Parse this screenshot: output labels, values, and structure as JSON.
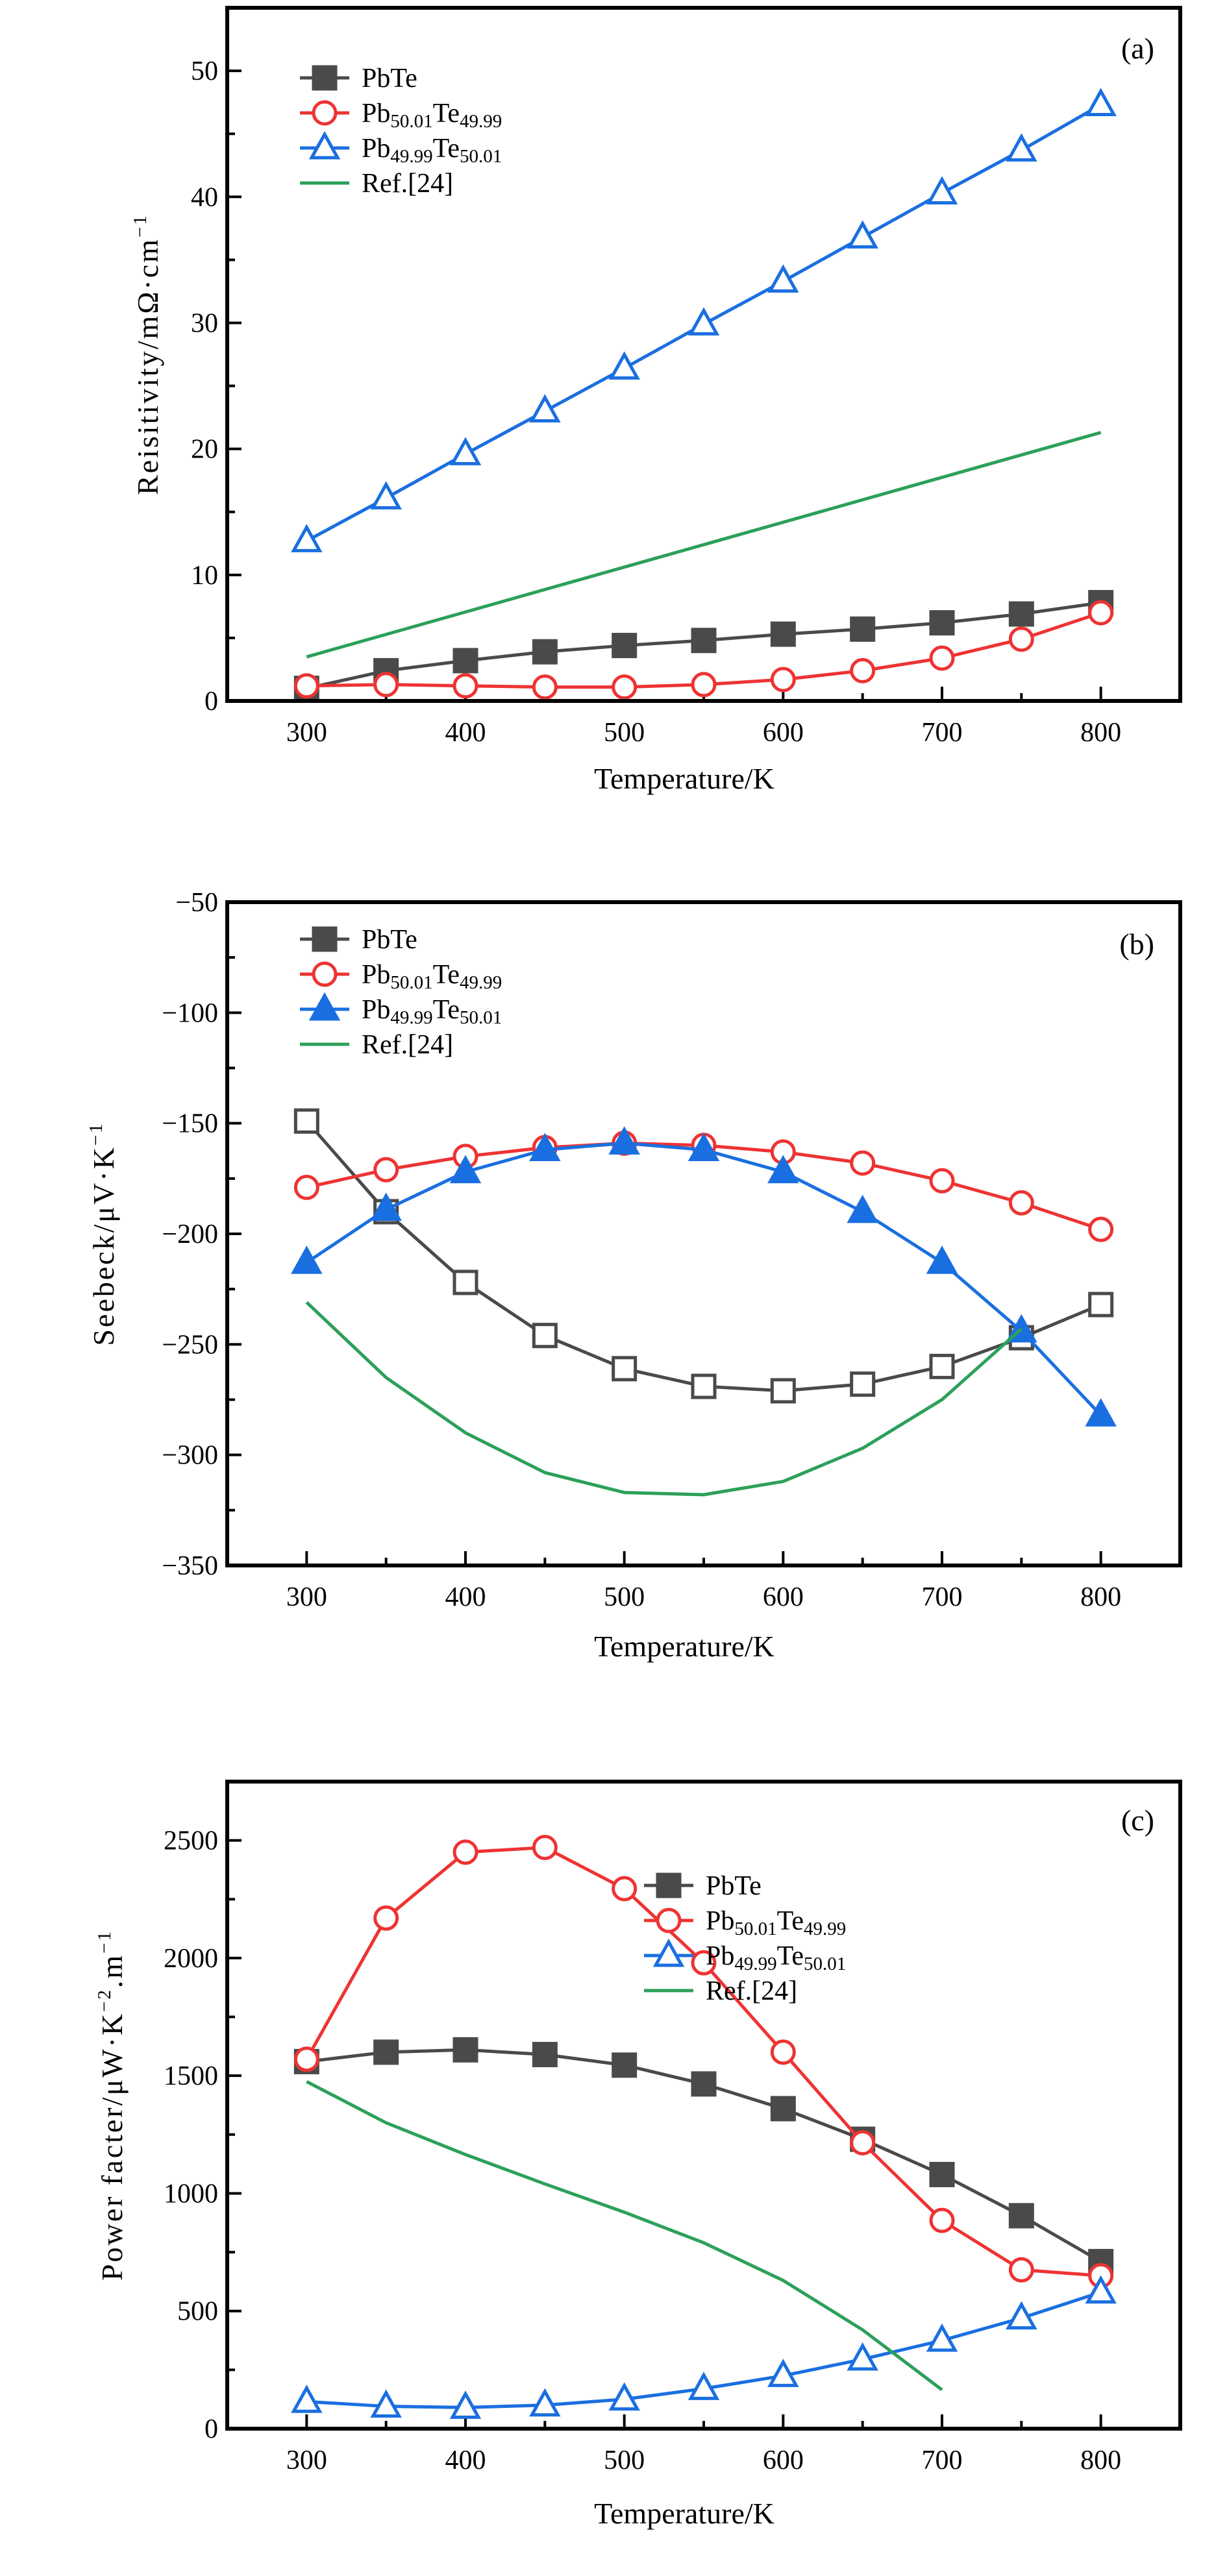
{
  "colors": {
    "PbTe": "#4a4a4a",
    "Pb50.01Te49.99": "#ee3333",
    "Pb49.99Te50.01": "#1a6fe0",
    "Ref": "#2ca05a"
  },
  "chart_data": [
    {
      "type": "line",
      "panel_label": "(a)",
      "xlabel": "Temperature/K",
      "ylabel": [
        "Reisitivity/mΩ·cm",
        "−1"
      ],
      "xlim": [
        250,
        850
      ],
      "ylim": [
        0,
        55
      ],
      "xticks": [
        300,
        400,
        500,
        600,
        700,
        800
      ],
      "xminor": 50,
      "yticks": [
        0,
        10,
        20,
        30,
        40,
        50
      ],
      "yminor": 5,
      "legend_position": "top-left",
      "x": [
        300,
        350,
        400,
        450,
        500,
        550,
        600,
        650,
        700,
        750,
        800
      ],
      "series": [
        {
          "name": [
            "PbTe"
          ],
          "key": "PbTe",
          "marker": "square",
          "fill": true,
          "values": [
            1.0,
            2.4,
            3.2,
            3.9,
            4.4,
            4.8,
            5.3,
            5.7,
            6.2,
            6.9,
            7.8
          ]
        },
        {
          "name": [
            "Pb",
            "50.01",
            "Te",
            "49.99"
          ],
          "key": "Pb50.01Te49.99",
          "marker": "circle",
          "fill": false,
          "values": [
            1.2,
            1.3,
            1.2,
            1.1,
            1.1,
            1.3,
            1.7,
            2.4,
            3.4,
            4.9,
            7.0
          ]
        },
        {
          "name": [
            "Pb",
            "49.99",
            "Te",
            "50.01"
          ],
          "key": "Pb49.99Te50.01",
          "marker": "triangle",
          "fill": false,
          "values": [
            12.7,
            16.1,
            19.6,
            23.0,
            26.4,
            29.9,
            33.3,
            36.8,
            40.3,
            43.7,
            47.3
          ]
        },
        {
          "name": [
            "Ref.[24]"
          ],
          "key": "Ref",
          "marker": "none",
          "x": [
            300,
            800
          ],
          "values": [
            3.5,
            21.3
          ]
        }
      ]
    },
    {
      "type": "line",
      "panel_label": "(b)",
      "xlabel": "Temperature/K",
      "ylabel": [
        "Seebeck/μV·K",
        "−1"
      ],
      "xlim": [
        250,
        850
      ],
      "ylim": [
        -350,
        -50
      ],
      "xticks": [
        300,
        400,
        500,
        600,
        700,
        800
      ],
      "xminor": 50,
      "yticks": [
        -350,
        -300,
        -250,
        -200,
        -150,
        -100,
        -50
      ],
      "yminor": 25,
      "ytick_labels": [
        "−350",
        "−300",
        "−250",
        "−200",
        "−150",
        "−100",
        "−50"
      ],
      "legend_position": "top-left",
      "x": [
        300,
        350,
        400,
        450,
        500,
        550,
        600,
        650,
        700,
        750,
        800
      ],
      "series": [
        {
          "name": [
            "PbTe"
          ],
          "key": "PbTe",
          "marker": "square",
          "fill": false,
          "legend_fill": true,
          "values": [
            -149,
            -190,
            -222,
            -246,
            -261,
            -269,
            -271,
            -268,
            -260,
            -247,
            -232
          ]
        },
        {
          "name": [
            "Pb",
            "50.01",
            "Te",
            "49.99"
          ],
          "key": "Pb50.01Te49.99",
          "marker": "circle",
          "fill": false,
          "values": [
            -179,
            -171,
            -165,
            -161,
            -159,
            -160,
            -163,
            -168,
            -176,
            -186,
            -198
          ]
        },
        {
          "name": [
            "Pb",
            "49.99",
            "Te",
            "50.01"
          ],
          "key": "Pb49.99Te50.01",
          "marker": "triangle",
          "fill": true,
          "values": [
            -213,
            -189,
            -172,
            -162,
            -159,
            -162,
            -172,
            -190,
            -213,
            -244,
            -282
          ]
        },
        {
          "name": [
            "Ref.[24]"
          ],
          "key": "Ref",
          "marker": "none",
          "x": [
            300,
            350,
            400,
            450,
            500,
            550,
            600,
            650,
            700,
            750
          ],
          "values": [
            -231,
            -265,
            -290,
            -308,
            -317,
            -318,
            -312,
            -297,
            -275,
            -243
          ]
        }
      ]
    },
    {
      "type": "line",
      "panel_label": "(c)",
      "xlabel": "Temperature/K",
      "ylabel": [
        "Power facter/μW·K",
        "−2",
        ".m",
        "−1"
      ],
      "xlim": [
        250,
        850
      ],
      "ylim": [
        0,
        2750
      ],
      "xticks": [
        300,
        400,
        500,
        600,
        700,
        800
      ],
      "xminor": 50,
      "yticks": [
        0,
        500,
        1000,
        1500,
        2000,
        2500
      ],
      "yminor": 250,
      "legend_position": "top-right",
      "x": [
        300,
        350,
        400,
        450,
        500,
        550,
        600,
        650,
        700,
        750,
        800
      ],
      "series": [
        {
          "name": [
            "PbTe"
          ],
          "key": "PbTe",
          "marker": "square",
          "fill": true,
          "values": [
            1560,
            1600,
            1610,
            1590,
            1545,
            1465,
            1360,
            1230,
            1080,
            905,
            710
          ]
        },
        {
          "name": [
            "Pb",
            "50.01",
            "Te",
            "49.99"
          ],
          "key": "Pb50.01Te49.99",
          "marker": "circle",
          "fill": false,
          "values": [
            1570,
            2170,
            2450,
            2470,
            2295,
            1980,
            1600,
            1215,
            885,
            675,
            650
          ]
        },
        {
          "name": [
            "Pb",
            "49.99",
            "Te",
            "50.01"
          ],
          "key": "Pb49.99Te50.01",
          "marker": "triangle",
          "fill": false,
          "values": [
            115,
            95,
            90,
            100,
            125,
            170,
            225,
            295,
            375,
            470,
            580
          ]
        },
        {
          "name": [
            "Ref.[24]"
          ],
          "key": "Ref",
          "marker": "none",
          "x": [
            300,
            350,
            400,
            450,
            500,
            550,
            600,
            650,
            700
          ],
          "values": [
            1475,
            1300,
            1165,
            1040,
            920,
            790,
            630,
            420,
            165
          ]
        }
      ]
    }
  ]
}
